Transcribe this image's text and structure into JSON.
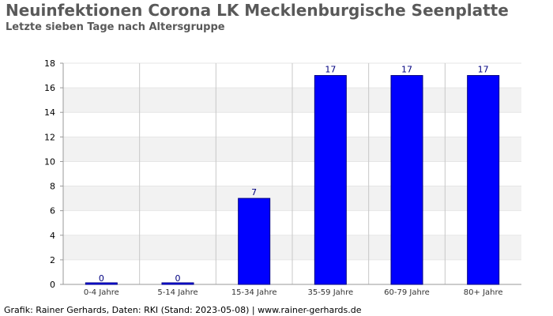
{
  "header": {
    "title": "Neuinfektionen Corona LK Mecklenburgische Seenplatte",
    "subtitle": "Letzte sieben Tage nach Altersgruppe"
  },
  "footer": {
    "credit": "Grafik: Rainer Gerhards, Daten: RKI (Stand: 2023-05-08) | www.rainer-gerhards.de"
  },
  "colors": {
    "bar_fill": "#0000ff",
    "bar_stroke": "#000080",
    "value_label": "#000080",
    "band": "#f2f2f2",
    "grid": "#c8c8c8",
    "axis": "#999999"
  },
  "chart_data": {
    "type": "bar",
    "title": "Neuinfektionen Corona LK Mecklenburgische Seenplatte",
    "subtitle": "Letzte sieben Tage nach Altersgruppe",
    "xlabel": "",
    "ylabel": "",
    "categories": [
      "0-4 Jahre",
      "5-14 Jahre",
      "15-34 Jahre",
      "35-59 Jahre",
      "60-79 Jahre",
      "80+ Jahre"
    ],
    "values": [
      0,
      0,
      7,
      17,
      17,
      17
    ],
    "value_labels": [
      "0",
      "0",
      "7",
      "17",
      "17",
      "17"
    ],
    "ylim": [
      0,
      18
    ],
    "yticks": [
      "0",
      "2",
      "4",
      "6",
      "8",
      "10",
      "12",
      "14",
      "16",
      "18"
    ],
    "grid": true,
    "legend": "none"
  }
}
